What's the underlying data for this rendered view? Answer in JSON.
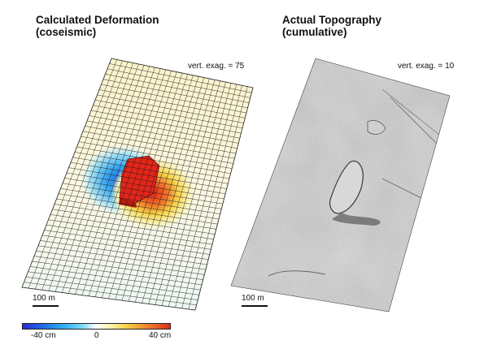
{
  "left_panel": {
    "title_line1": "Calculated Deformation",
    "title_line2": "(coseismic)",
    "vert_exag": "vert. exag. = 75",
    "scale_label": "100 m"
  },
  "right_panel": {
    "title_line1": "Actual Topography",
    "title_line2": "(cumulative)",
    "vert_exag": "vert. exag. = 10",
    "scale_label": "100 m"
  },
  "colorbar": {
    "tick_min": "-40 cm",
    "tick_mid": "0",
    "tick_max": "40 cm",
    "colors": [
      "#2b2bd6",
      "#1e73e8",
      "#35b7f2",
      "#8fe0f5",
      "#ffffff",
      "#fbf3a8",
      "#f8d34a",
      "#f09230",
      "#e02c1c"
    ]
  }
}
